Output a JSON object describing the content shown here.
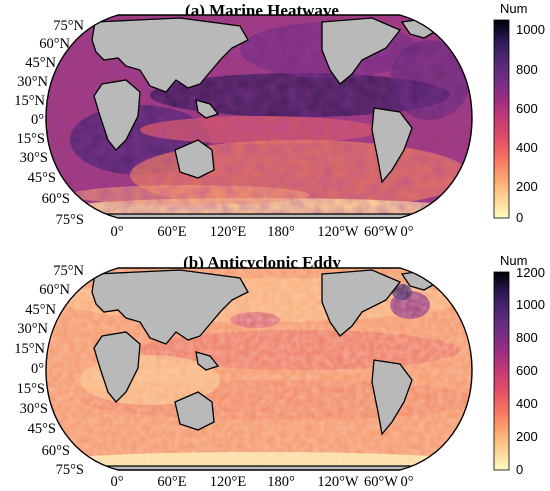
{
  "panels": [
    {
      "id": "a",
      "title": "(a) Marine Heatwave",
      "lat_labels": [
        "75°N",
        "60°N",
        "45°N",
        "30°N",
        "15°N",
        "0°",
        "15°S",
        "30°S",
        "45°S",
        "60°S",
        "75°S"
      ],
      "lon_labels": [
        "0°",
        "60°E",
        "120°E",
        "180°",
        "120°W",
        "60°W",
        "0°"
      ],
      "colorbar": {
        "label": "Num",
        "ticks": [
          "1000",
          "800",
          "600",
          "400",
          "200",
          "0"
        ],
        "min": 0,
        "max": 1000
      }
    },
    {
      "id": "b",
      "title": "(b) Anticyclonic Eddy",
      "lat_labels": [
        "75°N",
        "60°N",
        "45°N",
        "30°N",
        "15°N",
        "0°",
        "15°S",
        "30°S",
        "45°S",
        "60°S",
        "75°S"
      ],
      "lon_labels": [
        "0°",
        "60°E",
        "120°E",
        "180°",
        "120°W",
        "60°W",
        "0°"
      ],
      "colorbar": {
        "label": "Num",
        "ticks": [
          "1200",
          "1000",
          "800",
          "600",
          "400",
          "200",
          "0"
        ],
        "min": 0,
        "max": 1200
      }
    }
  ],
  "colors": {
    "land": "#b9b9b9",
    "coast": "#000000",
    "cmap": [
      "#fcfdbf",
      "#fed395",
      "#fca572",
      "#f67461",
      "#e24e65",
      "#c33b75",
      "#9b2e81",
      "#722d85",
      "#4f2874",
      "#2b1851",
      "#000004"
    ]
  }
}
